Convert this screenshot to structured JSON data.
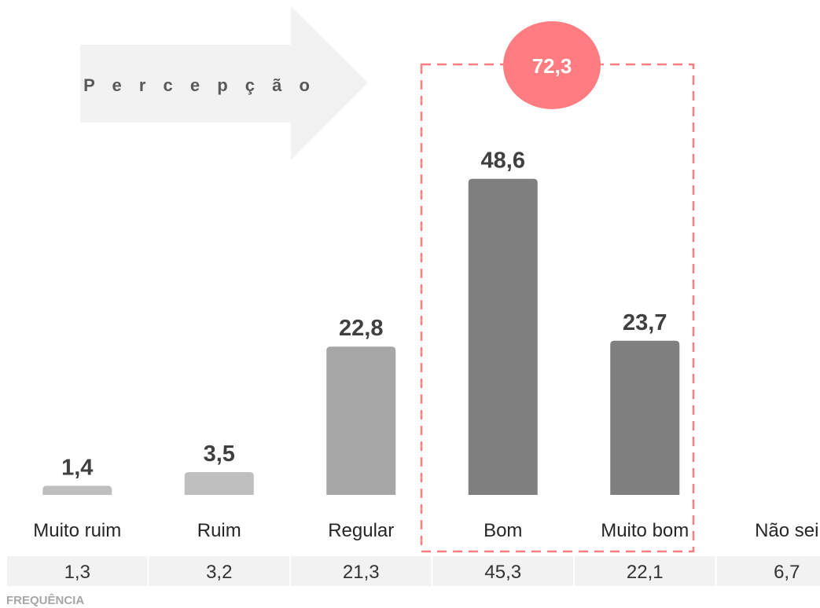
{
  "chart_data": {
    "type": "bar",
    "categories": [
      "Muito ruim",
      "Ruim",
      "Regular",
      "Bom",
      "Muito bom",
      "Não sei"
    ],
    "values": [
      1.4,
      3.5,
      22.8,
      48.6,
      23.7,
      null
    ],
    "value_labels": [
      "1,4",
      "3,5",
      "22,8",
      "48,6",
      "23,7",
      ""
    ],
    "ylim": [
      0,
      50
    ],
    "grid": false,
    "bar_colors": [
      "#bfbfbf",
      "#bfbfbf",
      "#a6a6a6",
      "#7f7f7f",
      "#7f7f7f",
      "#7f7f7f"
    ],
    "frequency_row": [
      "1,3",
      "3,2",
      "21,3",
      "45,3",
      "22,1",
      "6,7"
    ],
    "frequency_label": "FREQUÊNCIA",
    "arrow_label": "P e r c e p ç ã o",
    "highlight": {
      "categories": [
        "Bom",
        "Muito bom"
      ],
      "total_label": "72,3",
      "box_color": "#ff7c80",
      "circle_color": "#ff7c80"
    }
  },
  "colors": {
    "arrow_fill": "#f2f2f2",
    "frequency_cell_fill": "#f2f2f2"
  }
}
